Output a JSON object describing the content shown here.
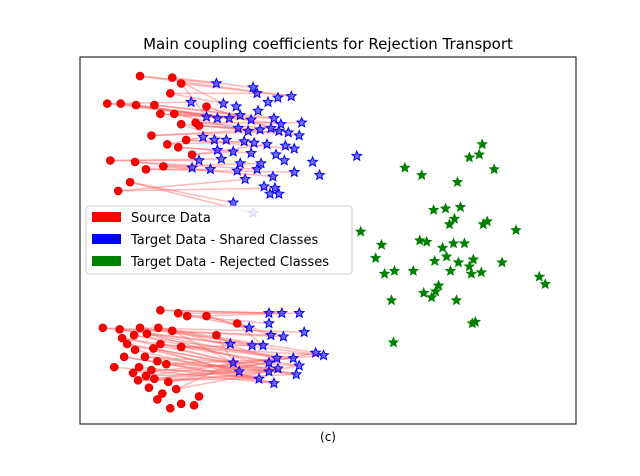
{
  "chart_data": {
    "type": "scatter",
    "title": "Main coupling coefficients for Rejection Transport",
    "xlabel": "(c)",
    "ylabel": "",
    "xlim": [
      0,
      100
    ],
    "ylim": [
      0,
      100
    ],
    "grid": false,
    "ticks": false,
    "legend": {
      "placement": "center-left",
      "entries": [
        {
          "label": "Source Data",
          "color": "#ff0000"
        },
        {
          "label": "Target Data - Shared Classes",
          "color": "#0000ff"
        },
        {
          "label": "Target Data - Rejected Classes",
          "color": "#008000"
        }
      ]
    },
    "series": [
      {
        "name": "Source Data",
        "color": "#ff0000",
        "marker": "circle",
        "points": [
          [
            12.1,
            94.8
          ],
          [
            18.6,
            94.4
          ],
          [
            20.4,
            92.8
          ],
          [
            18.2,
            90.1
          ],
          [
            5.5,
            87.3
          ],
          [
            8.2,
            87.3
          ],
          [
            11.3,
            86.9
          ],
          [
            15.0,
            86.9
          ],
          [
            16.2,
            84.5
          ],
          [
            19.0,
            84.5
          ],
          [
            25.5,
            86.5
          ],
          [
            23.3,
            82.1
          ],
          [
            20.4,
            81.7
          ],
          [
            24.0,
            81.3
          ],
          [
            14.4,
            78.6
          ],
          [
            17.6,
            76.2
          ],
          [
            21.4,
            77.4
          ],
          [
            19.8,
            75.4
          ],
          [
            22.6,
            73.4
          ],
          [
            6.1,
            71.8
          ],
          [
            11.1,
            71.4
          ],
          [
            13.3,
            69.4
          ],
          [
            16.8,
            70.2
          ],
          [
            7.7,
            63.5
          ],
          [
            10.1,
            65.9
          ],
          [
            16.2,
            31.0
          ],
          [
            19.8,
            30.2
          ],
          [
            21.6,
            29.4
          ],
          [
            25.5,
            29.4
          ],
          [
            31.7,
            27.4
          ],
          [
            4.6,
            26.2
          ],
          [
            8.0,
            25.8
          ],
          [
            12.1,
            26.2
          ],
          [
            15.8,
            26.2
          ],
          [
            18.6,
            25.4
          ],
          [
            13.5,
            24.6
          ],
          [
            10.9,
            24.2
          ],
          [
            8.5,
            23.4
          ],
          [
            9.5,
            21.8
          ],
          [
            11.1,
            20.2
          ],
          [
            16.2,
            21.8
          ],
          [
            20.4,
            21.0
          ],
          [
            27.5,
            24.2
          ],
          [
            14.8,
            20.6
          ],
          [
            13.1,
            18.3
          ],
          [
            8.9,
            18.3
          ],
          [
            15.6,
            17.1
          ],
          [
            17.4,
            16.3
          ],
          [
            6.9,
            15.5
          ],
          [
            11.9,
            15.5
          ],
          [
            14.4,
            14.7
          ],
          [
            10.7,
            13.9
          ],
          [
            13.3,
            13.1
          ],
          [
            15.0,
            12.3
          ],
          [
            17.8,
            11.5
          ],
          [
            11.7,
            11.9
          ],
          [
            13.9,
            9.9
          ],
          [
            19.4,
            9.5
          ],
          [
            16.6,
            8.3
          ],
          [
            15.6,
            6.7
          ],
          [
            24.0,
            7.5
          ],
          [
            20.4,
            5.5
          ],
          [
            23.0,
            5.1
          ],
          [
            18.2,
            4.3
          ]
        ]
      },
      {
        "name": "Target Data - Shared Classes",
        "color": "#0000ff",
        "marker": "star",
        "points": [
          [
            27.5,
            92.8
          ],
          [
            34.9,
            91.7
          ],
          [
            35.7,
            90.1
          ],
          [
            42.6,
            89.3
          ],
          [
            39.9,
            88.9
          ],
          [
            22.4,
            87.7
          ],
          [
            28.9,
            87.3
          ],
          [
            31.5,
            86.5
          ],
          [
            37.9,
            87.7
          ],
          [
            35.9,
            85.3
          ],
          [
            25.5,
            83.7
          ],
          [
            27.7,
            83.3
          ],
          [
            30.1,
            83.3
          ],
          [
            32.3,
            84.1
          ],
          [
            34.5,
            82.9
          ],
          [
            39.1,
            83.3
          ],
          [
            44.7,
            82.1
          ],
          [
            40.5,
            81.7
          ],
          [
            31.9,
            80.6
          ],
          [
            33.9,
            79.8
          ],
          [
            36.3,
            80.2
          ],
          [
            38.5,
            80.6
          ],
          [
            40.1,
            79.8
          ],
          [
            42.0,
            79.4
          ],
          [
            44.2,
            78.6
          ],
          [
            24.8,
            78.2
          ],
          [
            27.1,
            77.4
          ],
          [
            29.5,
            77.4
          ],
          [
            33.1,
            77.0
          ],
          [
            35.1,
            76.6
          ],
          [
            37.7,
            76.2
          ],
          [
            41.4,
            75.8
          ],
          [
            43.2,
            75.0
          ],
          [
            27.7,
            74.6
          ],
          [
            30.9,
            74.2
          ],
          [
            34.5,
            73.8
          ],
          [
            39.5,
            73.4
          ],
          [
            24.0,
            71.8
          ],
          [
            28.5,
            72.2
          ],
          [
            32.3,
            71.0
          ],
          [
            36.5,
            71.0
          ],
          [
            41.2,
            71.8
          ],
          [
            46.9,
            71.4
          ],
          [
            22.6,
            69.8
          ],
          [
            26.3,
            69.4
          ],
          [
            31.7,
            69.0
          ],
          [
            35.7,
            69.4
          ],
          [
            43.2,
            68.6
          ],
          [
            48.3,
            67.8
          ],
          [
            38.9,
            67.4
          ],
          [
            33.3,
            66.7
          ],
          [
            37.1,
            64.7
          ],
          [
            39.3,
            64.3
          ],
          [
            38.3,
            62.7
          ],
          [
            40.1,
            62.7
          ],
          [
            30.9,
            60.3
          ],
          [
            34.9,
            57.5
          ],
          [
            55.8,
            73.0
          ],
          [
            38.1,
            30.2
          ],
          [
            40.7,
            30.2
          ],
          [
            44.2,
            30.2
          ],
          [
            38.1,
            27.4
          ],
          [
            34.1,
            26.2
          ],
          [
            38.5,
            24.2
          ],
          [
            41.0,
            23.8
          ],
          [
            45.2,
            25.0
          ],
          [
            36.9,
            21.4
          ],
          [
            30.3,
            21.8
          ],
          [
            34.7,
            21.4
          ],
          [
            47.5,
            19.4
          ],
          [
            49.1,
            18.7
          ],
          [
            39.7,
            17.9
          ],
          [
            43.0,
            17.9
          ],
          [
            30.9,
            16.7
          ],
          [
            38.1,
            16.7
          ],
          [
            44.2,
            15.9
          ],
          [
            39.9,
            15.1
          ],
          [
            32.1,
            14.3
          ],
          [
            38.1,
            14.3
          ],
          [
            43.6,
            13.5
          ],
          [
            36.1,
            12.3
          ],
          [
            39.1,
            11.1
          ]
        ]
      },
      {
        "name": "Target Data - Rejected Classes",
        "color": "#008000",
        "marker": "star",
        "points": [
          [
            81.1,
            76.2
          ],
          [
            80.5,
            73.4
          ],
          [
            78.5,
            72.6
          ],
          [
            65.5,
            69.8
          ],
          [
            83.5,
            69.4
          ],
          [
            68.9,
            67.8
          ],
          [
            76.1,
            65.9
          ],
          [
            71.3,
            58.3
          ],
          [
            73.7,
            58.7
          ],
          [
            76.7,
            59.1
          ],
          [
            75.5,
            55.9
          ],
          [
            74.5,
            54.4
          ],
          [
            82.1,
            55.2
          ],
          [
            81.3,
            54.4
          ],
          [
            87.9,
            52.8
          ],
          [
            56.6,
            52.4
          ],
          [
            68.5,
            50.0
          ],
          [
            60.8,
            48.8
          ],
          [
            69.9,
            49.6
          ],
          [
            75.3,
            49.2
          ],
          [
            73.1,
            48.0
          ],
          [
            77.5,
            49.2
          ],
          [
            73.9,
            45.6
          ],
          [
            59.6,
            45.2
          ],
          [
            76.3,
            44.0
          ],
          [
            79.3,
            44.8
          ],
          [
            85.1,
            44.0
          ],
          [
            71.5,
            44.4
          ],
          [
            78.5,
            42.9
          ],
          [
            78.9,
            40.9
          ],
          [
            61.4,
            40.9
          ],
          [
            63.4,
            41.7
          ],
          [
            67.2,
            41.7
          ],
          [
            74.7,
            41.7
          ],
          [
            80.9,
            41.3
          ],
          [
            92.6,
            40.1
          ],
          [
            93.8,
            38.1
          ],
          [
            72.3,
            37.7
          ],
          [
            69.3,
            35.7
          ],
          [
            71.7,
            36.1
          ],
          [
            70.9,
            34.5
          ],
          [
            62.8,
            33.7
          ],
          [
            75.9,
            33.7
          ],
          [
            63.2,
            22.2
          ],
          [
            79.7,
            27.8
          ],
          [
            79.1,
            27.4
          ]
        ]
      }
    ],
    "couplings": [
      [
        0,
        0
      ],
      [
        0,
        3
      ],
      [
        1,
        1
      ],
      [
        1,
        6
      ],
      [
        2,
        3
      ],
      [
        2,
        10
      ],
      [
        3,
        2
      ],
      [
        3,
        6
      ],
      [
        4,
        5
      ],
      [
        4,
        12
      ],
      [
        5,
        11
      ],
      [
        5,
        12
      ],
      [
        6,
        12
      ],
      [
        6,
        17
      ],
      [
        7,
        13
      ],
      [
        7,
        15
      ],
      [
        8,
        10
      ],
      [
        8,
        14
      ],
      [
        9,
        15
      ],
      [
        9,
        19
      ],
      [
        10,
        22
      ],
      [
        10,
        23
      ],
      [
        11,
        16
      ],
      [
        11,
        21
      ],
      [
        12,
        20
      ],
      [
        12,
        27
      ],
      [
        13,
        18
      ],
      [
        13,
        24
      ],
      [
        14,
        20
      ],
      [
        14,
        22
      ],
      [
        15,
        25
      ],
      [
        15,
        28
      ],
      [
        16,
        29
      ],
      [
        16,
        32
      ],
      [
        17,
        33
      ],
      [
        17,
        35
      ],
      [
        18,
        30
      ],
      [
        18,
        34
      ],
      [
        19,
        37
      ],
      [
        19,
        38
      ],
      [
        20,
        43
      ],
      [
        20,
        46
      ],
      [
        21,
        44
      ],
      [
        21,
        47
      ],
      [
        22,
        49
      ],
      [
        22,
        40
      ],
      [
        23,
        50
      ],
      [
        23,
        52
      ],
      [
        24,
        56
      ],
      [
        24,
        55
      ],
      [
        25,
        58
      ],
      [
        25,
        59
      ],
      [
        26,
        59
      ],
      [
        26,
        62
      ],
      [
        27,
        60
      ],
      [
        27,
        61
      ],
      [
        28,
        62
      ],
      [
        28,
        63
      ],
      [
        29,
        64
      ],
      [
        29,
        66
      ],
      [
        30,
        67
      ],
      [
        30,
        63
      ],
      [
        31,
        64
      ],
      [
        31,
        70
      ],
      [
        32,
        65
      ],
      [
        32,
        66
      ],
      [
        33,
        68
      ],
      [
        33,
        69
      ],
      [
        34,
        71
      ],
      [
        34,
        73
      ],
      [
        35,
        76
      ],
      [
        35,
        71
      ],
      [
        36,
        72
      ],
      [
        36,
        74
      ],
      [
        37,
        75
      ],
      [
        37,
        79
      ],
      [
        38,
        77
      ],
      [
        38,
        79
      ],
      [
        39,
        80
      ],
      [
        39,
        82
      ],
      [
        40,
        72
      ],
      [
        40,
        73
      ],
      [
        41,
        68
      ],
      [
        41,
        70
      ],
      [
        42,
        67
      ],
      [
        42,
        77
      ],
      [
        43,
        78
      ],
      [
        43,
        81
      ],
      [
        44,
        79
      ],
      [
        44,
        75
      ],
      [
        45,
        80
      ],
      [
        45,
        81
      ],
      [
        46,
        82
      ],
      [
        46,
        78
      ],
      [
        47,
        72
      ],
      [
        47,
        76
      ],
      [
        48,
        81
      ],
      [
        48,
        83
      ],
      [
        49,
        80
      ],
      [
        49,
        82
      ],
      [
        50,
        83
      ],
      [
        50,
        77
      ],
      [
        51,
        83
      ],
      [
        51,
        70
      ],
      [
        52,
        78
      ],
      [
        52,
        71
      ],
      [
        53,
        74
      ],
      [
        53,
        76
      ],
      [
        54,
        78
      ],
      [
        54,
        69
      ],
      [
        55,
        80
      ],
      [
        55,
        79
      ],
      [
        56,
        82
      ],
      [
        56,
        83
      ],
      [
        57,
        73
      ],
      [
        57,
        75
      ]
    ]
  }
}
